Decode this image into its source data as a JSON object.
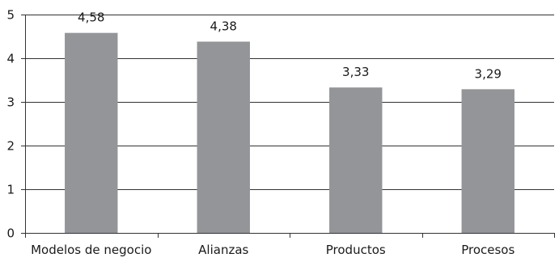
{
  "chart_data": {
    "type": "bar",
    "categories": [
      "Modelos de negocio",
      "Alianzas",
      "Productos",
      "Procesos"
    ],
    "values": [
      4.58,
      4.38,
      3.33,
      3.29
    ],
    "value_labels": [
      "4,58",
      "4,38",
      "3,33",
      "3,29"
    ],
    "title": "",
    "xlabel": "",
    "ylabel": "",
    "ylim": [
      0,
      5
    ],
    "yticks": [
      0,
      1,
      2,
      3,
      4,
      5
    ],
    "grid": true,
    "legend": "none",
    "colors": {
      "bar": "#939598",
      "grid": "#333333",
      "axis": "#333333"
    }
  }
}
